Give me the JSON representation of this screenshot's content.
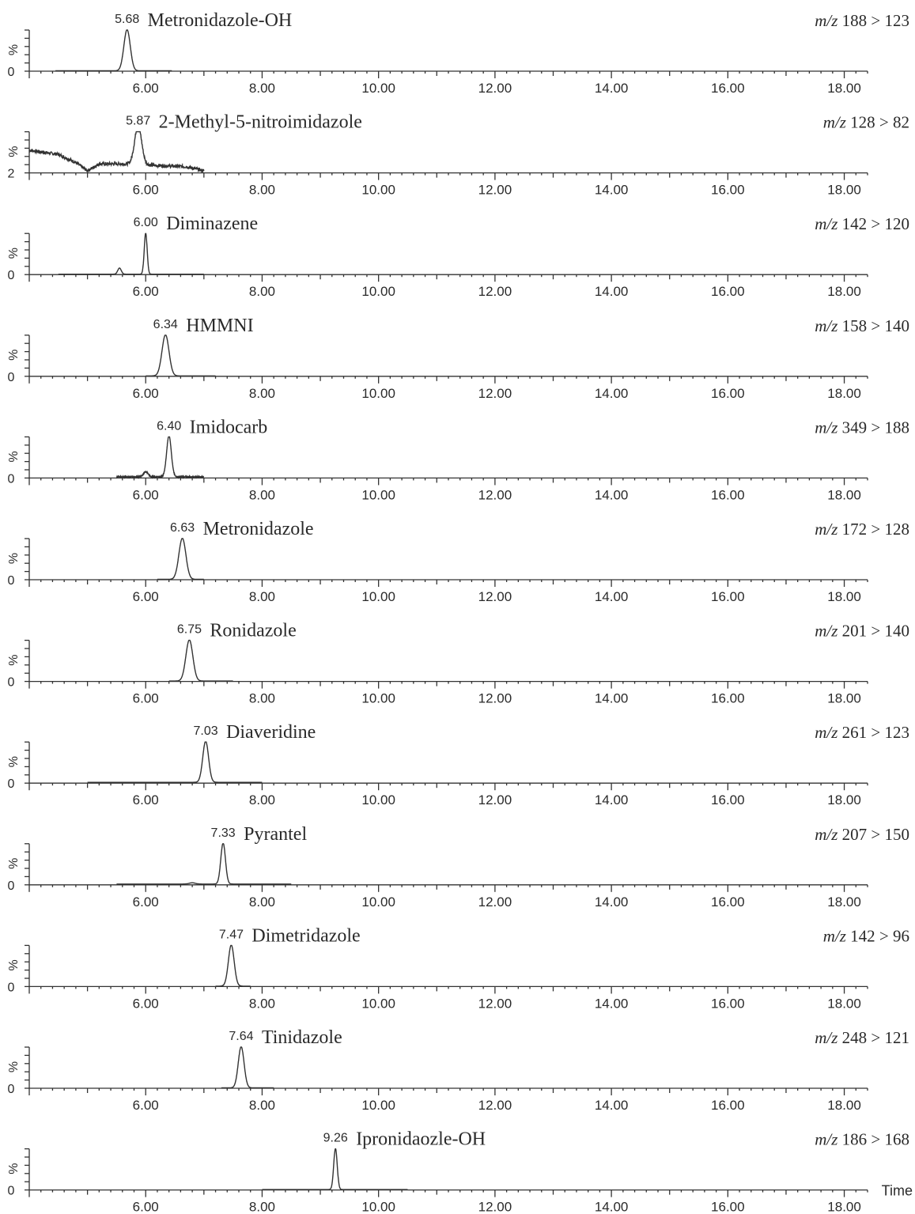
{
  "chart_data": {
    "type": "line",
    "x_axis": {
      "label": "Time",
      "range": [
        4.0,
        18.4
      ],
      "major_ticks": [
        6.0,
        8.0,
        10.0,
        12.0,
        14.0,
        16.0,
        18.0
      ],
      "tick_labels": [
        "6.00",
        "8.00",
        "10.00",
        "12.00",
        "14.00",
        "16.00",
        "18.00"
      ],
      "minor_step": 0.2
    },
    "y_axis": {
      "label": "%",
      "zero_label": "0",
      "range": [
        0,
        100
      ]
    },
    "panels": [
      {
        "compound": "Metronidazole-OH",
        "mz_prefix": "m/z",
        "mz_value": "188 > 123",
        "rt": 5.68,
        "rt_label": "5.68",
        "y_zero_label": "0",
        "x_range": [
          4.45,
          6.45
        ],
        "peaks": [
          [
            5.68,
            100,
            0.055
          ]
        ],
        "baseline": 1,
        "noise": 0
      },
      {
        "compound": "2-Methyl-5-nitroimidazole",
        "mz_prefix": "m/z",
        "mz_value": "128 > 82",
        "rt": 5.87,
        "rt_label": "5.87",
        "y_zero_label": "2",
        "x_range": [
          4.0,
          7.0
        ],
        "peaks": [
          [
            5.87,
            95,
            0.06
          ]
        ],
        "baseline": 30,
        "noise": 4,
        "drift": [
          [
            4.0,
            55
          ],
          [
            4.5,
            45
          ],
          [
            4.8,
            25
          ],
          [
            5.0,
            5
          ],
          [
            5.2,
            22
          ],
          [
            5.6,
            22
          ],
          [
            6.2,
            18
          ],
          [
            6.7,
            15
          ],
          [
            7.0,
            5
          ]
        ]
      },
      {
        "compound": "Diminazene",
        "mz_prefix": "m/z",
        "mz_value": "142 > 120",
        "rt": 6.0,
        "rt_label": "6.00",
        "y_zero_label": "0",
        "x_range": [
          4.5,
          7.0
        ],
        "peaks": [
          [
            6.0,
            100,
            0.025
          ],
          [
            5.55,
            15,
            0.03
          ]
        ],
        "baseline": 1,
        "noise": 0
      },
      {
        "compound": "HMMNI",
        "mz_prefix": "m/z",
        "mz_value": "158 > 140",
        "rt": 6.34,
        "rt_label": "6.34",
        "y_zero_label": "0",
        "x_range": [
          6.0,
          7.2
        ],
        "peaks": [
          [
            6.34,
            100,
            0.06
          ]
        ],
        "baseline": 1,
        "noise": 0
      },
      {
        "compound": "Imidocarb",
        "mz_prefix": "m/z",
        "mz_value": "349 > 188",
        "rt": 6.4,
        "rt_label": "6.40",
        "y_zero_label": "0",
        "x_range": [
          5.5,
          7.0
        ],
        "peaks": [
          [
            6.4,
            100,
            0.04
          ],
          [
            6.0,
            12,
            0.04
          ]
        ],
        "baseline": 3,
        "noise": 1
      },
      {
        "compound": "Metronidazole",
        "mz_prefix": "m/z",
        "mz_value": "172 > 128",
        "rt": 6.63,
        "rt_label": "6.63",
        "y_zero_label": "0",
        "x_range": [
          6.2,
          7.0
        ],
        "peaks": [
          [
            6.63,
            100,
            0.06
          ]
        ],
        "baseline": 1,
        "noise": 0
      },
      {
        "compound": "Ronidazole",
        "mz_prefix": "m/z",
        "mz_value": "201 > 140",
        "rt": 6.75,
        "rt_label": "6.75",
        "y_zero_label": "0",
        "x_range": [
          6.4,
          7.5
        ],
        "peaks": [
          [
            6.75,
            100,
            0.06
          ]
        ],
        "baseline": 1,
        "noise": 0
      },
      {
        "compound": "Diaveridine",
        "mz_prefix": "m/z",
        "mz_value": "261 > 123",
        "rt": 7.03,
        "rt_label": "7.03",
        "y_zero_label": "0",
        "x_range": [
          5.0,
          8.0
        ],
        "peaks": [
          [
            7.03,
            100,
            0.05
          ]
        ],
        "baseline": 2,
        "noise": 0
      },
      {
        "compound": "Pyrantel",
        "mz_prefix": "m/z",
        "mz_value": "207 > 150",
        "rt": 7.33,
        "rt_label": "7.33",
        "y_zero_label": "0",
        "x_range": [
          5.5,
          8.5
        ],
        "peaks": [
          [
            7.33,
            100,
            0.04
          ],
          [
            6.8,
            3,
            0.05
          ]
        ],
        "baseline": 2,
        "noise": 0
      },
      {
        "compound": "Dimetridazole",
        "mz_prefix": "m/z",
        "mz_value": "142 > 96",
        "rt": 7.47,
        "rt_label": "7.47",
        "y_zero_label": "0",
        "x_range": [
          7.2,
          7.8
        ],
        "peaks": [
          [
            7.47,
            100,
            0.05
          ]
        ],
        "baseline": 1,
        "noise": 0
      },
      {
        "compound": "Tinidazole",
        "mz_prefix": "m/z",
        "mz_value": "248 > 121",
        "rt": 7.64,
        "rt_label": "7.64",
        "y_zero_label": "0",
        "x_range": [
          7.3,
          8.2
        ],
        "peaks": [
          [
            7.64,
            100,
            0.05
          ]
        ],
        "baseline": 1,
        "noise": 0
      },
      {
        "compound": "Ipronidaozle-OH",
        "mz_prefix": "m/z",
        "mz_value": "186 > 168",
        "rt": 9.26,
        "rt_label": "9.26",
        "y_zero_label": "0",
        "x_range": [
          8.0,
          10.5
        ],
        "peaks": [
          [
            9.26,
            100,
            0.03
          ]
        ],
        "baseline": 1,
        "noise": 0
      }
    ]
  }
}
